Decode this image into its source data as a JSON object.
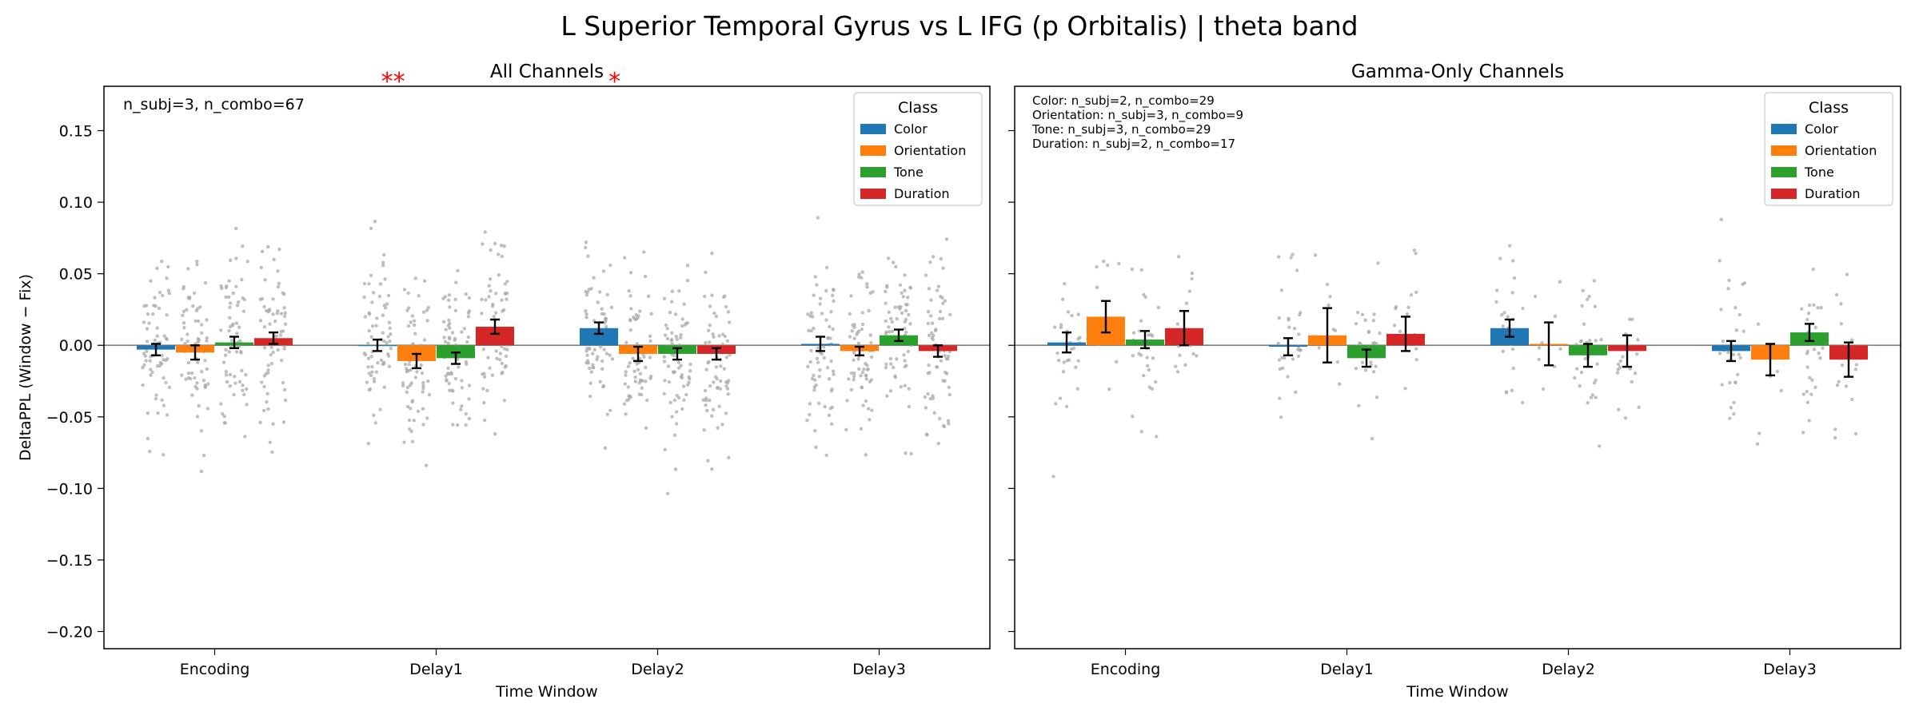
{
  "figure": {
    "title": "L Superior Temporal Gyrus vs L IFG (p Orbitalis)  |  theta band"
  },
  "colors": {
    "Color": "#1f77b4",
    "Orientation": "#ff7f0e",
    "Tone": "#2ca02c",
    "Duration": "#d62728",
    "scatter": "#a9a9a9",
    "significance": "#ff0000"
  },
  "chart_data": [
    {
      "type": "bar",
      "title": "All Channels",
      "xlabel": "Time Window",
      "ylabel": "DeltaPPL (Window − Fix)",
      "categories": [
        "Encoding",
        "Delay1",
        "Delay2",
        "Delay3"
      ],
      "ylim": [
        -0.212,
        0.181
      ],
      "yticks": [
        -0.2,
        -0.15,
        -0.1,
        -0.05,
        0.0,
        0.05,
        0.1,
        0.15
      ],
      "ytick_labels": [
        "−0.20",
        "−0.15",
        "−0.10",
        "−0.05",
        "0.00",
        "0.05",
        "0.10",
        "0.15"
      ],
      "zero_line": true,
      "legend": {
        "title": "Class",
        "placement": "top-right"
      },
      "annotation": "n_subj=3, n_combo=67",
      "significance": [
        {
          "category": "Delay1",
          "label": "**"
        },
        {
          "category": "Delay2",
          "label": "*"
        }
      ],
      "series": [
        {
          "name": "Color",
          "values": [
            -0.003,
            0.0,
            0.012,
            0.001
          ],
          "errors": [
            0.004,
            0.004,
            0.004,
            0.005
          ]
        },
        {
          "name": "Orientation",
          "values": [
            -0.005,
            -0.011,
            -0.006,
            -0.004
          ],
          "errors": [
            0.005,
            0.005,
            0.005,
            0.003
          ]
        },
        {
          "name": "Tone",
          "values": [
            0.002,
            -0.009,
            -0.006,
            0.007
          ],
          "errors": [
            0.004,
            0.004,
            0.004,
            0.004
          ]
        },
        {
          "name": "Duration",
          "values": [
            0.005,
            0.013,
            -0.006,
            -0.004
          ],
          "errors": [
            0.004,
            0.005,
            0.004,
            0.004
          ]
        }
      ],
      "points_per_bar": 67,
      "point_spread": 0.045
    },
    {
      "type": "bar",
      "title": "Gamma-Only Channels",
      "xlabel": "Time Window",
      "ylabel": "",
      "categories": [
        "Encoding",
        "Delay1",
        "Delay2",
        "Delay3"
      ],
      "ylim": [
        -0.212,
        0.181
      ],
      "yticks": [
        -0.2,
        -0.15,
        -0.1,
        -0.05,
        0.0,
        0.05,
        0.1,
        0.15
      ],
      "ytick_labels": [],
      "zero_line": true,
      "legend": {
        "title": "Class",
        "placement": "top-right"
      },
      "annotation_lines": [
        "Color: n_subj=2, n_combo=29",
        "Orientation: n_subj=3, n_combo=9",
        "Tone: n_subj=3, n_combo=29",
        "Duration: n_subj=2, n_combo=17"
      ],
      "significance": [],
      "series": [
        {
          "name": "Color",
          "values": [
            0.002,
            -0.001,
            0.012,
            -0.004
          ],
          "errors": [
            0.007,
            0.006,
            0.006,
            0.007
          ]
        },
        {
          "name": "Orientation",
          "values": [
            0.02,
            0.007,
            0.001,
            -0.01
          ],
          "errors": [
            0.011,
            0.019,
            0.015,
            0.011
          ]
        },
        {
          "name": "Tone",
          "values": [
            0.004,
            -0.009,
            -0.007,
            0.009
          ],
          "errors": [
            0.006,
            0.006,
            0.008,
            0.006
          ]
        },
        {
          "name": "Duration",
          "values": [
            0.012,
            0.008,
            -0.004,
            -0.01
          ],
          "errors": [
            0.012,
            0.012,
            0.011,
            0.012
          ]
        }
      ],
      "points_per_bar": [
        29,
        9,
        29,
        17
      ],
      "point_spread": 0.04
    }
  ]
}
